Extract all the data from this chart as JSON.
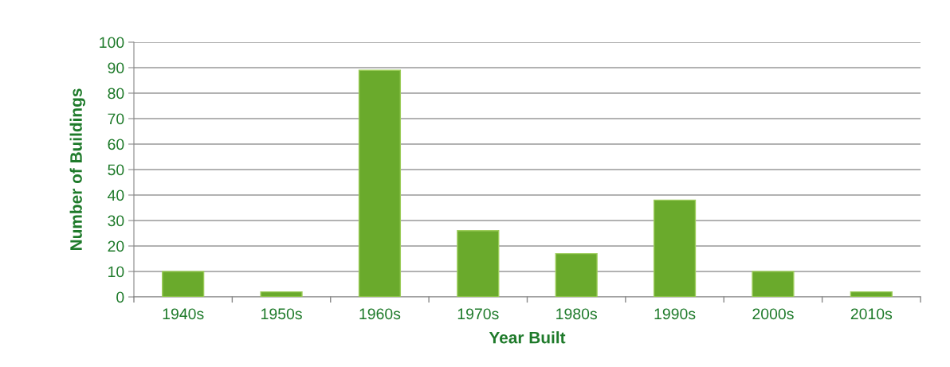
{
  "chart_data": {
    "type": "bar",
    "xlabel": "Year Built",
    "ylabel": "Number of Buildings",
    "categories": [
      "1940s",
      "1950s",
      "1960s",
      "1970s",
      "1980s",
      "1990s",
      "2000s",
      "2010s"
    ],
    "values": [
      10,
      2,
      89,
      26,
      17,
      38,
      10,
      2
    ],
    "color": "#6aaa2c",
    "ylim": [
      0,
      100
    ],
    "yticks": [
      0,
      10,
      20,
      30,
      40,
      50,
      60,
      70,
      80,
      90,
      100
    ],
    "grid": "y",
    "legend": false
  }
}
